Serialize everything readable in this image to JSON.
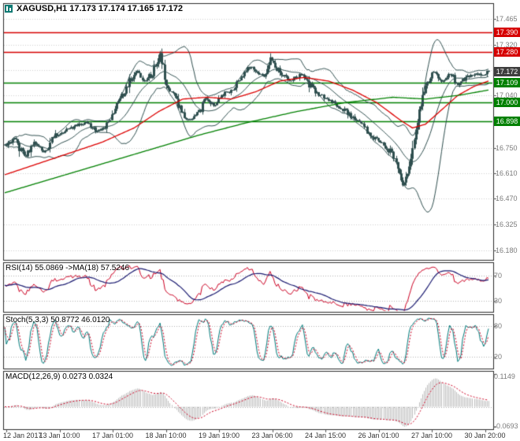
{
  "header": {
    "symbol": "XAGUSD",
    "timeframe": "H1",
    "open": "17.173",
    "high": "17.174",
    "low": "17.165",
    "close": "17.172",
    "title": "XAGUSD,H1 17.173 17.174 17.165 17.172"
  },
  "colors": {
    "background": "#ffffff",
    "panel_border": "#2b2b2b",
    "grid": "#cfcfcf",
    "candle": "#2f4f4f",
    "bollinger": "#2f4f4f",
    "ma_fast": "#dd0000",
    "ma_slow": "#008000",
    "resistance": "#d60000",
    "support": "#008000",
    "current_price_badge": "#3e3e3e",
    "rsi_line": "#cc0022",
    "rsi_ma": "#191970",
    "stoch_main": "#007a7a",
    "stoch_signal": "#cc0022",
    "macd_histogram": "#bdbdbd",
    "macd_signal": "#cc0022",
    "axis_text": "#7a7a7a",
    "level_line": "#b0b0b0"
  },
  "price_scale": {
    "ticks": [
      {
        "label": "17.465",
        "value": 17.465
      },
      {
        "label": "17.320",
        "value": 17.32
      },
      {
        "label": "17.040",
        "value": 17.04
      },
      {
        "label": "16.750",
        "value": 16.75
      },
      {
        "label": "16.610",
        "value": 16.61
      },
      {
        "label": "16.470",
        "value": 16.47
      },
      {
        "label": "16.325",
        "value": 16.325
      },
      {
        "label": "16.180",
        "value": 16.18
      }
    ],
    "badges": [
      {
        "label": "17.390",
        "value": 17.39,
        "style": "resistance"
      },
      {
        "label": "17.280",
        "value": 17.28,
        "style": "resistance"
      },
      {
        "label": "17.172",
        "value": 17.172,
        "style": "current"
      },
      {
        "label": "17.109",
        "value": 17.109,
        "style": "support"
      },
      {
        "label": "17.000",
        "value": 17.0,
        "style": "support"
      },
      {
        "label": "16.898",
        "value": 16.898,
        "style": "support"
      }
    ]
  },
  "panels": {
    "rsi": {
      "label": "RSI(14) 55.0869 ->MA(18) 57.5246",
      "ticks": [
        {
          "label": "70",
          "value": 70
        },
        {
          "label": "30",
          "value": 30
        }
      ]
    },
    "stoch": {
      "label": "Stoch(5,3,3) 50.8772 46.0120",
      "ticks": [
        {
          "label": "80",
          "value": 80
        },
        {
          "label": "20",
          "value": 20
        }
      ]
    },
    "macd": {
      "label": "MACD(12,26,9) 0.0273 0.0324",
      "ticks": [
        {
          "label": "0.1149",
          "value": 0.1149
        },
        {
          "label": "-0.0693",
          "value": -0.0693
        }
      ]
    }
  },
  "time_axis": {
    "labels": [
      "12 Jan 2017",
      "13 Jan 10:00",
      "17 Jan 01:00",
      "18 Jan 10:00",
      "19 Jan 19:00",
      "23 Jan 06:00",
      "24 Jan 15:00",
      "26 Jan 01:00",
      "27 Jan 10:00",
      "30 Jan 20:00"
    ]
  },
  "chart_data": [
    {
      "type": "candlestick",
      "title": "XAGUSD,H1",
      "symbol": "XAGUSD",
      "timeframe": "H1",
      "last_quote": {
        "open": 17.173,
        "high": 17.174,
        "low": 17.165,
        "close": 17.172
      },
      "bars": 300,
      "ylim": [
        16.128,
        17.552
      ],
      "grid_values": [
        17.465,
        17.32,
        17.18,
        17.04,
        16.895,
        16.75,
        16.61,
        16.47,
        16.325,
        16.18
      ],
      "horizontal_lines": [
        {
          "value": 17.39,
          "role": "resistance"
        },
        {
          "value": 17.28,
          "role": "resistance"
        },
        {
          "value": 17.109,
          "role": "support"
        },
        {
          "value": 17.0,
          "role": "support"
        },
        {
          "value": 16.898,
          "role": "support"
        }
      ],
      "close_anchors": [
        [
          0,
          16.76
        ],
        [
          6,
          16.8
        ],
        [
          12,
          16.7
        ],
        [
          18,
          16.78
        ],
        [
          24,
          16.72
        ],
        [
          31,
          16.82
        ],
        [
          41,
          16.86
        ],
        [
          50,
          16.89
        ],
        [
          57,
          16.84
        ],
        [
          62,
          16.87
        ],
        [
          70,
          17.0
        ],
        [
          77,
          17.12
        ],
        [
          82,
          17.17
        ],
        [
          86,
          17.12
        ],
        [
          91,
          17.16
        ],
        [
          96,
          17.28
        ],
        [
          100,
          17.1
        ],
        [
          106,
          17.0
        ],
        [
          113,
          16.9
        ],
        [
          119,
          16.93
        ],
        [
          124,
          17.02
        ],
        [
          130,
          16.98
        ],
        [
          135,
          17.05
        ],
        [
          140,
          17.06
        ],
        [
          147,
          17.16
        ],
        [
          152,
          17.2
        ],
        [
          160,
          17.15
        ],
        [
          164,
          17.24
        ],
        [
          169,
          17.18
        ],
        [
          176,
          17.12
        ],
        [
          183,
          17.16
        ],
        [
          188,
          17.1
        ],
        [
          193,
          17.05
        ],
        [
          200,
          17.02
        ],
        [
          208,
          16.97
        ],
        [
          215,
          16.92
        ],
        [
          222,
          16.86
        ],
        [
          229,
          16.8
        ],
        [
          237,
          16.74
        ],
        [
          241,
          16.68
        ],
        [
          246,
          16.54
        ],
        [
          249,
          16.6
        ],
        [
          253,
          16.78
        ],
        [
          257,
          17.0
        ],
        [
          260,
          17.1
        ],
        [
          265,
          17.17
        ],
        [
          270,
          17.12
        ],
        [
          275,
          17.16
        ],
        [
          280,
          17.1
        ],
        [
          285,
          17.14
        ],
        [
          290,
          17.16
        ],
        [
          295,
          17.15
        ],
        [
          299,
          17.172
        ]
      ],
      "overlays": {
        "bollinger": {
          "period": 20,
          "deviation": 2
        },
        "ma_fast_anchors": [
          [
            0,
            16.6
          ],
          [
            20,
            16.66
          ],
          [
            40,
            16.72
          ],
          [
            60,
            16.78
          ],
          [
            80,
            16.86
          ],
          [
            95,
            16.95
          ],
          [
            110,
            17.02
          ],
          [
            125,
            17.03
          ],
          [
            140,
            17.02
          ],
          [
            155,
            17.06
          ],
          [
            170,
            17.12
          ],
          [
            185,
            17.14
          ],
          [
            200,
            17.12
          ],
          [
            215,
            17.07
          ],
          [
            230,
            17.0
          ],
          [
            245,
            16.9
          ],
          [
            252,
            16.86
          ],
          [
            260,
            16.88
          ],
          [
            270,
            16.96
          ],
          [
            280,
            17.04
          ],
          [
            290,
            17.09
          ],
          [
            299,
            17.12
          ]
        ],
        "ma_slow_anchors": [
          [
            0,
            16.5
          ],
          [
            30,
            16.58
          ],
          [
            60,
            16.66
          ],
          [
            90,
            16.74
          ],
          [
            120,
            16.82
          ],
          [
            150,
            16.89
          ],
          [
            180,
            16.95
          ],
          [
            210,
            17.0
          ],
          [
            240,
            17.03
          ],
          [
            260,
            17.02
          ],
          [
            280,
            17.04
          ],
          [
            299,
            17.07
          ]
        ]
      },
      "x_labels": [
        "12 Jan 2017",
        "13 Jan 10:00",
        "17 Jan 01:00",
        "18 Jan 10:00",
        "19 Jan 19:00",
        "23 Jan 06:00",
        "24 Jan 15:00",
        "26 Jan 01:00",
        "27 Jan 10:00",
        "30 Jan 20:00"
      ]
    },
    {
      "type": "line",
      "name": "RSI",
      "params": "14",
      "value": 55.0869,
      "ma_period": 18,
      "ma_value": 57.5246,
      "levels": [
        70,
        30
      ],
      "ylim": [
        12,
        92
      ]
    },
    {
      "type": "line",
      "name": "Stochastic",
      "params": "5,3,3",
      "value": 50.8772,
      "signal_value": 46.012,
      "levels": [
        80,
        20
      ],
      "ylim": [
        -4,
        104
      ]
    },
    {
      "type": "bar",
      "name": "MACD",
      "params": "12,26,9",
      "value": 0.0273,
      "signal_value": 0.0324,
      "scale_max": 0.1149,
      "scale_min": -0.0693,
      "ylim": [
        -0.078,
        0.125
      ]
    }
  ]
}
